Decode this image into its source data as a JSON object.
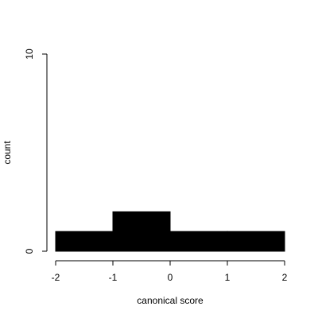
{
  "chart_data": {
    "type": "bar",
    "title": "",
    "xlabel": "canonical score",
    "ylabel": "count",
    "xlim": [
      -2,
      2
    ],
    "ylim": [
      0,
      10
    ],
    "x_ticks": [
      "-2",
      "-1",
      "0",
      "1",
      "2"
    ],
    "y_ticks": [
      "0",
      "10"
    ],
    "bins": [
      {
        "x0": -2,
        "x1": -1,
        "count": 1
      },
      {
        "x0": -1,
        "x1": 0,
        "count": 2
      },
      {
        "x0": 0,
        "x1": 1,
        "count": 1
      },
      {
        "x0": 1,
        "x1": 2,
        "count": 1
      }
    ],
    "bar_color": "#000000",
    "grid": false,
    "legend": "none"
  }
}
